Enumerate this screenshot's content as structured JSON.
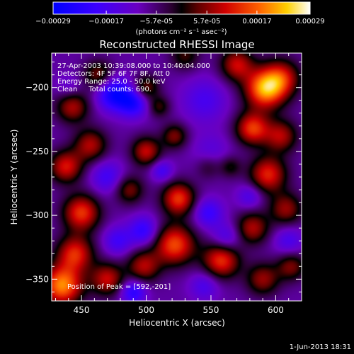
{
  "chart_data": {
    "type": "heatmap",
    "title": "Reconstructed RHESSI Image",
    "xlabel": "Heliocentric X (arcsec)",
    "ylabel": "Heliocentric Y (arcsec)",
    "xlim": [
      427,
      620
    ],
    "ylim": [
      -367,
      -173
    ],
    "x_ticks": [
      450,
      500,
      550,
      600
    ],
    "y_ticks": [
      -200,
      -250,
      -300,
      -350
    ],
    "info_lines": [
      "27-Apr-2003 10:39:08.000 to 10:40:04.000",
      "Detectors: 4F 5F 6F 7F 8F, Att 0",
      "Energy Range: 25.0 - 50.0 keV",
      "Clean     Total counts: 690."
    ],
    "peak_label": "Position of Peak = [592,-201]",
    "peak": [
      592,
      -201
    ],
    "colorbar": {
      "ticks": [
        "-0.00029",
        "-0.00017",
        "-5.7e-05",
        "5.7e-05",
        "0.00017",
        "0.00029"
      ],
      "tick_values": [
        -0.00029,
        -0.00017,
        -5.7e-05,
        5.7e-05,
        0.00017,
        0.00029
      ],
      "vmin": -0.00029,
      "vmax": 0.00029,
      "unit_label": "(photons cm⁻² s⁻¹ asec⁻²)"
    },
    "blobs": [
      {
        "x": 592,
        "y": -201,
        "v": 1.0,
        "s": 11
      },
      {
        "x": 605,
        "y": -192,
        "v": 0.55,
        "s": 10
      },
      {
        "x": 570,
        "y": -182,
        "v": 0.6,
        "s": 9
      },
      {
        "x": 582,
        "y": -232,
        "v": 0.75,
        "s": 9
      },
      {
        "x": 604,
        "y": -238,
        "v": 0.55,
        "s": 9
      },
      {
        "x": 594,
        "y": -268,
        "v": 0.7,
        "s": 10
      },
      {
        "x": 608,
        "y": -295,
        "v": 0.5,
        "s": 9
      },
      {
        "x": 582,
        "y": -310,
        "v": 0.55,
        "s": 9
      },
      {
        "x": 558,
        "y": -335,
        "v": 0.75,
        "s": 10
      },
      {
        "x": 590,
        "y": -350,
        "v": 0.5,
        "s": 9
      },
      {
        "x": 612,
        "y": -340,
        "v": 0.45,
        "s": 8
      },
      {
        "x": 522,
        "y": -323,
        "v": 0.8,
        "s": 11
      },
      {
        "x": 498,
        "y": -340,
        "v": 0.55,
        "s": 9
      },
      {
        "x": 470,
        "y": -350,
        "v": 0.6,
        "s": 9
      },
      {
        "x": 435,
        "y": -355,
        "v": 0.95,
        "s": 11
      },
      {
        "x": 445,
        "y": -330,
        "v": 0.7,
        "s": 10
      },
      {
        "x": 450,
        "y": -298,
        "v": 0.75,
        "s": 10
      },
      {
        "x": 438,
        "y": -262,
        "v": 0.65,
        "s": 9
      },
      {
        "x": 457,
        "y": -245,
        "v": 0.55,
        "s": 9
      },
      {
        "x": 443,
        "y": -215,
        "v": 0.55,
        "s": 9
      },
      {
        "x": 463,
        "y": -190,
        "v": 0.45,
        "s": 8
      },
      {
        "x": 530,
        "y": -175,
        "v": 0.35,
        "s": 8
      },
      {
        "x": 500,
        "y": -200,
        "v": 0.45,
        "s": 7
      },
      {
        "x": 510,
        "y": -215,
        "v": 0.35,
        "s": 6
      },
      {
        "x": 500,
        "y": -250,
        "v": 0.6,
        "s": 8
      },
      {
        "x": 522,
        "y": -238,
        "v": 0.45,
        "s": 7
      },
      {
        "x": 525,
        "y": -287,
        "v": 0.75,
        "s": 9
      },
      {
        "x": 487,
        "y": -280,
        "v": 0.45,
        "s": 8
      },
      {
        "x": 548,
        "y": -262,
        "v": 0.25,
        "s": 7
      },
      {
        "x": 565,
        "y": -262,
        "v": 0.3,
        "s": 6
      },
      {
        "x": 545,
        "y": -210,
        "v": -0.3,
        "s": 12
      },
      {
        "x": 475,
        "y": -205,
        "v": -0.65,
        "s": 9
      },
      {
        "x": 490,
        "y": -212,
        "v": -0.55,
        "s": 8
      },
      {
        "x": 550,
        "y": -250,
        "v": -0.2,
        "s": 10
      },
      {
        "x": 512,
        "y": -265,
        "v": -0.35,
        "s": 6
      },
      {
        "x": 498,
        "y": -312,
        "v": -0.45,
        "s": 8
      },
      {
        "x": 548,
        "y": -298,
        "v": -0.4,
        "s": 8
      },
      {
        "x": 562,
        "y": -318,
        "v": -0.35,
        "s": 8
      },
      {
        "x": 470,
        "y": -270,
        "v": -0.35,
        "s": 9
      },
      {
        "x": 478,
        "y": -320,
        "v": -0.35,
        "s": 8
      },
      {
        "x": 610,
        "y": -320,
        "v": -0.3,
        "s": 8
      },
      {
        "x": 490,
        "y": -360,
        "v": -0.5,
        "s": 7
      },
      {
        "x": 545,
        "y": -355,
        "v": -0.3,
        "s": 8
      },
      {
        "x": 580,
        "y": -285,
        "v": -0.3,
        "s": 7
      },
      {
        "x": 440,
        "y": -200,
        "v": -0.2,
        "s": 7
      }
    ]
  },
  "footer": {
    "date": "1-Jun-2013 18:31"
  }
}
